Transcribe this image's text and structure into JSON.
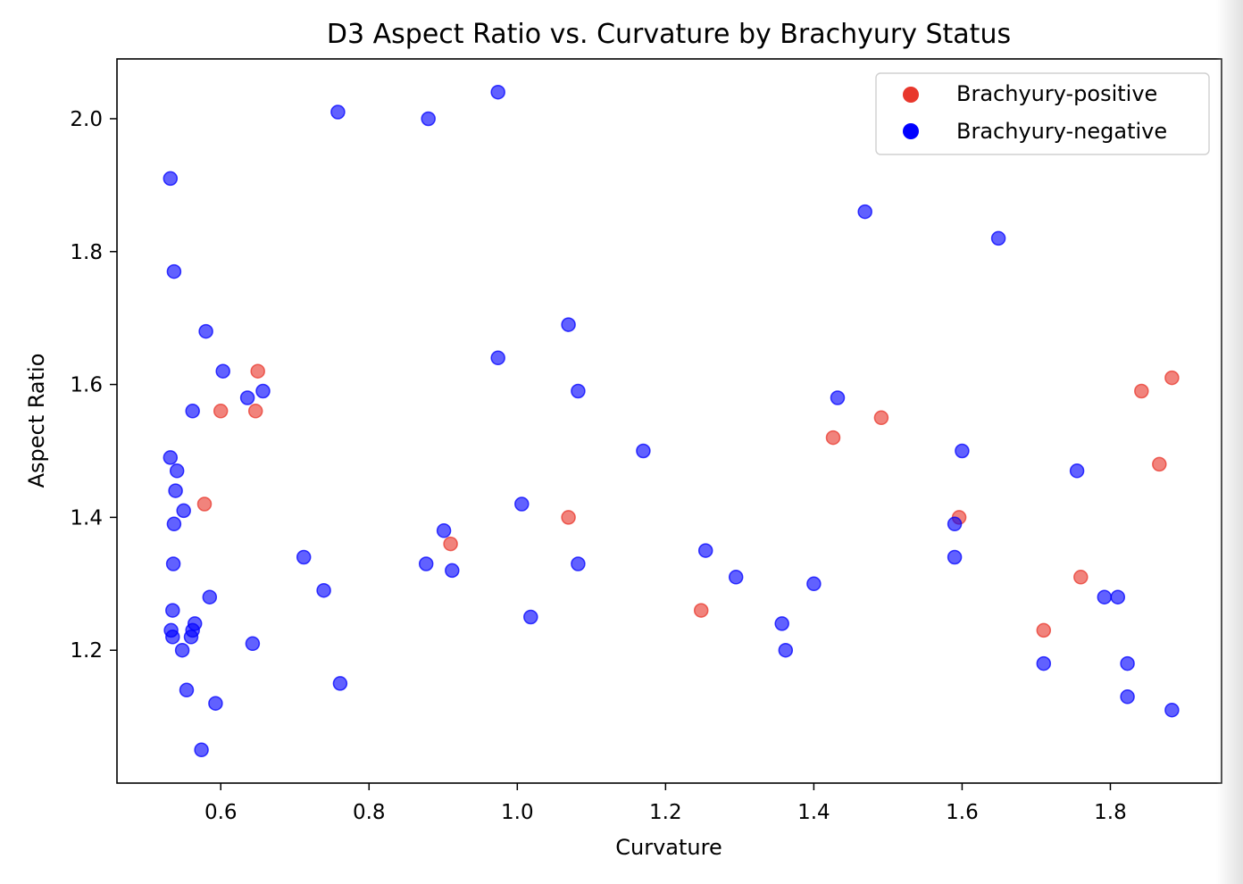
{
  "chart_data": {
    "type": "scatter",
    "title": "D3 Aspect Ratio vs. Curvature by Brachyury Status",
    "xlabel": "Curvature",
    "ylabel": "Aspect Ratio",
    "xlim": [
      0.46,
      1.95
    ],
    "ylim": [
      1.0,
      2.09
    ],
    "xticks": [
      0.6,
      0.8,
      1.0,
      1.2,
      1.4,
      1.6,
      1.8
    ],
    "xtick_labels": [
      "0.6",
      "0.8",
      "1.0",
      "1.2",
      "1.4",
      "1.6",
      "1.8"
    ],
    "yticks": [
      1.2,
      1.4,
      1.6,
      1.8,
      2.0
    ],
    "ytick_labels": [
      "1.2",
      "1.4",
      "1.6",
      "1.8",
      "2.0"
    ],
    "grid": false,
    "legend_position": "upper-right",
    "series": [
      {
        "name": "Brachyury-positive",
        "color": "#e8372c",
        "points": [
          [
            0.6,
            1.56
          ],
          [
            0.647,
            1.56
          ],
          [
            0.65,
            1.62
          ],
          [
            0.578,
            1.42
          ],
          [
            0.91,
            1.36
          ],
          [
            1.069,
            1.4
          ],
          [
            1.248,
            1.26
          ],
          [
            1.426,
            1.52
          ],
          [
            1.491,
            1.55
          ],
          [
            1.596,
            1.4
          ],
          [
            1.71,
            1.23
          ],
          [
            1.76,
            1.31
          ],
          [
            1.842,
            1.59
          ],
          [
            1.866,
            1.48
          ],
          [
            1.883,
            1.61
          ]
        ]
      },
      {
        "name": "Brachyury-negative",
        "color": "#0000ff",
        "points": [
          [
            0.532,
            1.91
          ],
          [
            0.537,
            1.77
          ],
          [
            0.58,
            1.68
          ],
          [
            0.603,
            1.62
          ],
          [
            0.562,
            1.56
          ],
          [
            0.636,
            1.58
          ],
          [
            0.657,
            1.59
          ],
          [
            0.532,
            1.49
          ],
          [
            0.541,
            1.47
          ],
          [
            0.539,
            1.44
          ],
          [
            0.55,
            1.41
          ],
          [
            0.537,
            1.39
          ],
          [
            0.536,
            1.33
          ],
          [
            0.535,
            1.26
          ],
          [
            0.585,
            1.28
          ],
          [
            0.565,
            1.24
          ],
          [
            0.533,
            1.23
          ],
          [
            0.535,
            1.22
          ],
          [
            0.562,
            1.23
          ],
          [
            0.56,
            1.22
          ],
          [
            0.548,
            1.2
          ],
          [
            0.643,
            1.21
          ],
          [
            0.554,
            1.14
          ],
          [
            0.593,
            1.12
          ],
          [
            0.574,
            1.05
          ],
          [
            0.712,
            1.34
          ],
          [
            0.739,
            1.29
          ],
          [
            0.761,
            1.15
          ],
          [
            0.758,
            2.01
          ],
          [
            0.88,
            2.0
          ],
          [
            0.974,
            2.04
          ],
          [
            0.974,
            1.64
          ],
          [
            1.069,
            1.69
          ],
          [
            1.082,
            1.59
          ],
          [
            0.901,
            1.38
          ],
          [
            0.877,
            1.33
          ],
          [
            0.912,
            1.32
          ],
          [
            1.006,
            1.42
          ],
          [
            1.018,
            1.25
          ],
          [
            1.082,
            1.33
          ],
          [
            1.17,
            1.5
          ],
          [
            1.254,
            1.35
          ],
          [
            1.295,
            1.31
          ],
          [
            1.357,
            1.24
          ],
          [
            1.362,
            1.2
          ],
          [
            1.4,
            1.3
          ],
          [
            1.432,
            1.58
          ],
          [
            1.469,
            1.86
          ],
          [
            1.649,
            1.82
          ],
          [
            1.6,
            1.5
          ],
          [
            1.59,
            1.39
          ],
          [
            1.59,
            1.34
          ],
          [
            1.755,
            1.47
          ],
          [
            1.71,
            1.18
          ],
          [
            1.792,
            1.28
          ],
          [
            1.81,
            1.28
          ],
          [
            1.823,
            1.18
          ],
          [
            1.823,
            1.13
          ],
          [
            1.883,
            1.11
          ]
        ]
      }
    ]
  }
}
